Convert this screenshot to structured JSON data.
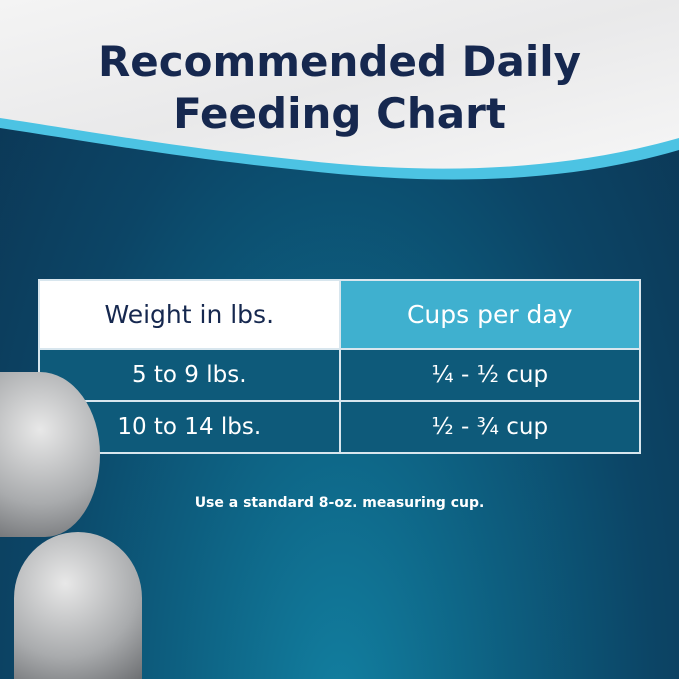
{
  "title_line1": "Recommended Daily",
  "title_line2": "Feeding Chart",
  "table": {
    "headers": [
      "Weight in lbs.",
      "Cups per day"
    ],
    "rows": [
      [
        "5 to 9 lbs.",
        "¼ - ½ cup"
      ],
      [
        "10 to 14 lbs.",
        "½ - ¾ cup"
      ]
    ]
  },
  "note": "Use a standard 8-oz. measuring cup.",
  "colors": {
    "title": "#16284f",
    "header_accent": "#3fb0cf",
    "row_bg": "#0e5a7a"
  }
}
